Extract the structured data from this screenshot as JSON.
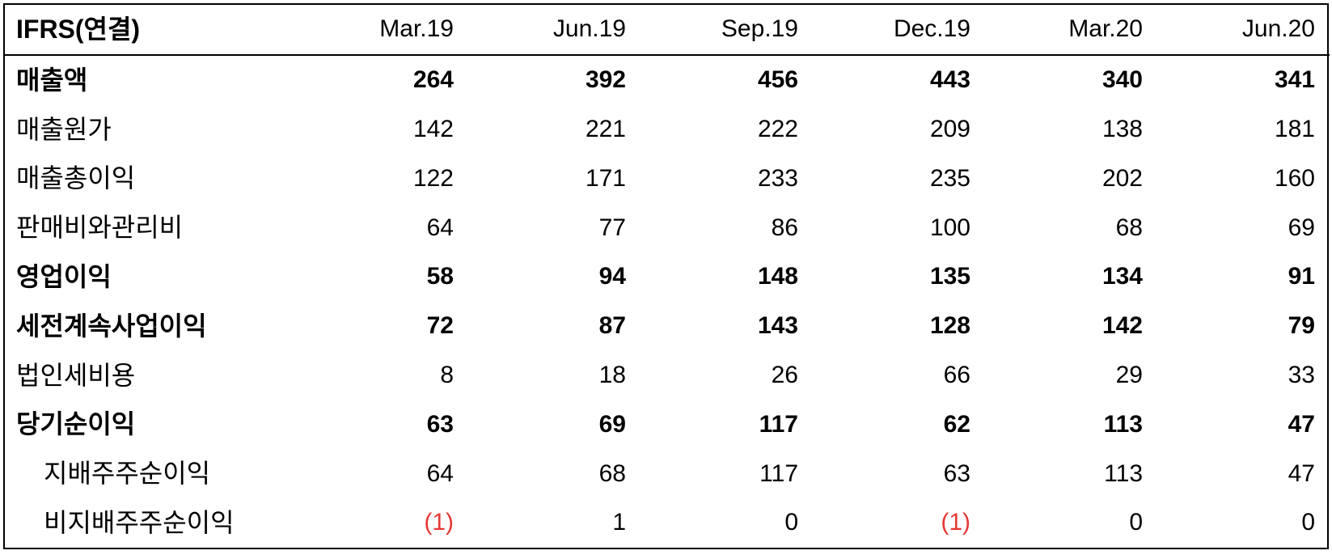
{
  "table": {
    "header_label": "IFRS(연결)",
    "columns": [
      "Mar.19",
      "Jun.19",
      "Sep.19",
      "Dec.19",
      "Mar.20",
      "Jun.20"
    ],
    "rows": [
      {
        "label": "매출액",
        "bold": true,
        "indent": false,
        "values": [
          "264",
          "392",
          "456",
          "443",
          "340",
          "341"
        ],
        "negative": [
          false,
          false,
          false,
          false,
          false,
          false
        ]
      },
      {
        "label": "매출원가",
        "bold": false,
        "indent": false,
        "values": [
          "142",
          "221",
          "222",
          "209",
          "138",
          "181"
        ],
        "negative": [
          false,
          false,
          false,
          false,
          false,
          false
        ]
      },
      {
        "label": "매출총이익",
        "bold": false,
        "indent": false,
        "values": [
          "122",
          "171",
          "233",
          "235",
          "202",
          "160"
        ],
        "negative": [
          false,
          false,
          false,
          false,
          false,
          false
        ]
      },
      {
        "label": "판매비와관리비",
        "bold": false,
        "indent": false,
        "values": [
          "64",
          "77",
          "86",
          "100",
          "68",
          "69"
        ],
        "negative": [
          false,
          false,
          false,
          false,
          false,
          false
        ]
      },
      {
        "label": "영업이익",
        "bold": true,
        "indent": false,
        "values": [
          "58",
          "94",
          "148",
          "135",
          "134",
          "91"
        ],
        "negative": [
          false,
          false,
          false,
          false,
          false,
          false
        ]
      },
      {
        "label": "세전계속사업이익",
        "bold": true,
        "indent": false,
        "values": [
          "72",
          "87",
          "143",
          "128",
          "142",
          "79"
        ],
        "negative": [
          false,
          false,
          false,
          false,
          false,
          false
        ]
      },
      {
        "label": "법인세비용",
        "bold": false,
        "indent": false,
        "values": [
          "8",
          "18",
          "26",
          "66",
          "29",
          "33"
        ],
        "negative": [
          false,
          false,
          false,
          false,
          false,
          false
        ]
      },
      {
        "label": "당기순이익",
        "bold": true,
        "indent": false,
        "values": [
          "63",
          "69",
          "117",
          "62",
          "113",
          "47"
        ],
        "negative": [
          false,
          false,
          false,
          false,
          false,
          false
        ]
      },
      {
        "label": "지배주주순이익",
        "bold": false,
        "indent": true,
        "values": [
          "64",
          "68",
          "117",
          "63",
          "113",
          "47"
        ],
        "negative": [
          false,
          false,
          false,
          false,
          false,
          false
        ]
      },
      {
        "label": "비지배주주순이익",
        "bold": false,
        "indent": true,
        "values": [
          "(1)",
          "1",
          "0",
          "(1)",
          "0",
          "0"
        ],
        "negative": [
          true,
          false,
          false,
          true,
          false,
          false
        ]
      }
    ]
  },
  "style": {
    "border_color": "#000000",
    "negative_color": "#e53935",
    "background_color": "#ffffff",
    "font_size_header": 30,
    "font_size_label": 32,
    "font_size_cell": 30
  }
}
